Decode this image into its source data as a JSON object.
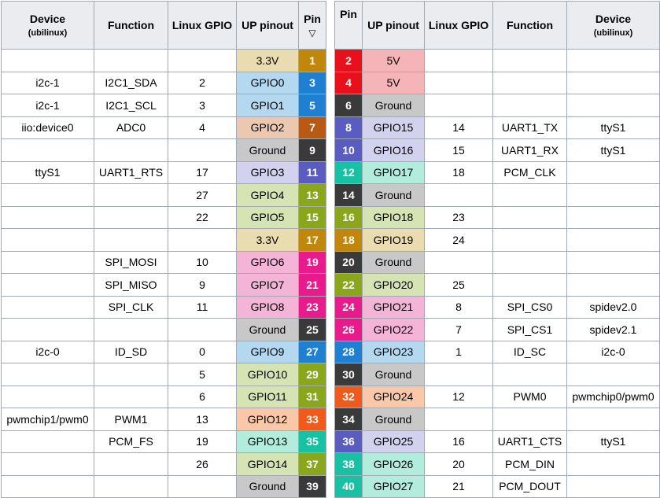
{
  "headers": {
    "left_device": "Device",
    "left_device_sub": "(ubilinux)",
    "left_function": "Function",
    "left_gpio": "Linux GPIO",
    "left_pinout": "UP pinout",
    "pin_left": "Pin",
    "pin_left_marker": "▽",
    "pin_right": "Pin",
    "right_pinout": "UP pinout",
    "right_gpio": "Linux GPIO",
    "right_function": "Function",
    "right_device": "Device",
    "right_device_sub": "(ubilinux)"
  },
  "pin_colors": {
    "p33": "#c0870a",
    "p5": "#e8101a",
    "i2c": "#1f7fd0",
    "gnd": "#3a3a3a",
    "adc": "#b85a14",
    "uart": "#5a5cc0",
    "gpio": "#8aa61a",
    "pcm": "#18c0a4",
    "spi": "#e81a8c",
    "pwm": "#f05a1a"
  },
  "cell_colors": {
    "p33": "#e8dcb0",
    "p5": "#f4b4b8",
    "i2c": "#b4d8f0",
    "gnd": "#c8c8c8",
    "adc": "#ecc8b0",
    "uart": "#d2d2ee",
    "gpio": "#d6e4b4",
    "pcm": "#b2ecdc",
    "spi": "#f4b4d8",
    "pwm": "#f8c8a8",
    "none": "#ffffff"
  },
  "rows": [
    {
      "l_device": "",
      "l_function": "",
      "l_gpio": "",
      "l_pinout": "3.3V",
      "l_type": "p33",
      "l_pin": "1",
      "r_pin": "2",
      "r_type": "p5",
      "r_pinout": "5V",
      "r_gpio": "",
      "r_function": "",
      "r_device": ""
    },
    {
      "l_device": "i2c-1",
      "l_function": "I2C1_SDA",
      "l_gpio": "2",
      "l_pinout": "GPIO0",
      "l_type": "i2c",
      "l_pin": "3",
      "r_pin": "4",
      "r_type": "p5",
      "r_pinout": "5V",
      "r_gpio": "",
      "r_function": "",
      "r_device": ""
    },
    {
      "l_device": "i2c-1",
      "l_function": "I2C1_SCL",
      "l_gpio": "3",
      "l_pinout": "GPIO1",
      "l_type": "i2c",
      "l_pin": "5",
      "r_pin": "6",
      "r_type": "gnd",
      "r_pinout": "Ground",
      "r_gpio": "",
      "r_function": "",
      "r_device": ""
    },
    {
      "l_device": "iio:device0",
      "l_function": "ADC0",
      "l_gpio": "4",
      "l_pinout": "GPIO2",
      "l_type": "adc",
      "l_pin": "7",
      "r_pin": "8",
      "r_type": "uart",
      "r_pinout": "GPIO15",
      "r_gpio": "14",
      "r_function": "UART1_TX",
      "r_device": "ttyS1"
    },
    {
      "l_device": "",
      "l_function": "",
      "l_gpio": "",
      "l_pinout": "Ground",
      "l_type": "gnd",
      "l_pin": "9",
      "r_pin": "10",
      "r_type": "uart",
      "r_pinout": "GPIO16",
      "r_gpio": "15",
      "r_function": "UART1_RX",
      "r_device": "ttyS1"
    },
    {
      "l_device": "ttyS1",
      "l_function": "UART1_RTS",
      "l_gpio": "17",
      "l_pinout": "GPIO3",
      "l_type": "uart",
      "l_pin": "11",
      "r_pin": "12",
      "r_type": "pcm",
      "r_pinout": "GPIO17",
      "r_gpio": "18",
      "r_function": "PCM_CLK",
      "r_device": ""
    },
    {
      "l_device": "",
      "l_function": "",
      "l_gpio": "27",
      "l_pinout": "GPIO4",
      "l_type": "gpio",
      "l_pin": "13",
      "r_pin": "14",
      "r_type": "gnd",
      "r_pinout": "Ground",
      "r_gpio": "",
      "r_function": "",
      "r_device": ""
    },
    {
      "l_device": "",
      "l_function": "",
      "l_gpio": "22",
      "l_pinout": "GPIO5",
      "l_type": "gpio",
      "l_pin": "15",
      "r_pin": "16",
      "r_type": "gpio",
      "r_pinout": "GPIO18",
      "r_gpio": "23",
      "r_function": "",
      "r_device": ""
    },
    {
      "l_device": "",
      "l_function": "",
      "l_gpio": "",
      "l_pinout": "3.3V",
      "l_type": "p33",
      "l_pin": "17",
      "r_pin": "18",
      "r_type": "p33",
      "r_pinout": "GPIO19",
      "r_gpio": "24",
      "r_function": "",
      "r_device": ""
    },
    {
      "l_device": "",
      "l_function": "SPI_MOSI",
      "l_gpio": "10",
      "l_pinout": "GPIO6",
      "l_type": "spi",
      "l_pin": "19",
      "r_pin": "20",
      "r_type": "gnd",
      "r_pinout": "Ground",
      "r_gpio": "",
      "r_function": "",
      "r_device": ""
    },
    {
      "l_device": "",
      "l_function": "SPI_MISO",
      "l_gpio": "9",
      "l_pinout": "GPIO7",
      "l_type": "spi",
      "l_pin": "21",
      "r_pin": "22",
      "r_type": "gpio",
      "r_pinout": "GPIO20",
      "r_gpio": "25",
      "r_function": "",
      "r_device": ""
    },
    {
      "l_device": "",
      "l_function": "SPI_CLK",
      "l_gpio": "11",
      "l_pinout": "GPIO8",
      "l_type": "spi",
      "l_pin": "23",
      "r_pin": "24",
      "r_type": "spi",
      "r_pinout": "GPIO21",
      "r_gpio": "8",
      "r_function": "SPI_CS0",
      "r_device": "spidev2.0"
    },
    {
      "l_device": "",
      "l_function": "",
      "l_gpio": "",
      "l_pinout": "Ground",
      "l_type": "gnd",
      "l_pin": "25",
      "r_pin": "26",
      "r_type": "spi",
      "r_pinout": "GPIO22",
      "r_gpio": "7",
      "r_function": "SPI_CS1",
      "r_device": "spidev2.1"
    },
    {
      "l_device": "i2c-0",
      "l_function": "ID_SD",
      "l_gpio": "0",
      "l_pinout": "GPIO9",
      "l_type": "i2c",
      "l_pin": "27",
      "r_pin": "28",
      "r_type": "i2c",
      "r_pinout": "GPIO23",
      "r_gpio": "1",
      "r_function": "ID_SC",
      "r_device": "i2c-0"
    },
    {
      "l_device": "",
      "l_function": "",
      "l_gpio": "5",
      "l_pinout": "GPIO10",
      "l_type": "gpio",
      "l_pin": "29",
      "r_pin": "30",
      "r_type": "gnd",
      "r_pinout": "Ground",
      "r_gpio": "",
      "r_function": "",
      "r_device": ""
    },
    {
      "l_device": "",
      "l_function": "",
      "l_gpio": "6",
      "l_pinout": "GPIO11",
      "l_type": "gpio",
      "l_pin": "31",
      "r_pin": "32",
      "r_type": "pwm",
      "r_pinout": "GPIO24",
      "r_gpio": "12",
      "r_function": "PWM0",
      "r_device": "pwmchip0/pwm0"
    },
    {
      "l_device": "pwmchip1/pwm0",
      "l_function": "PWM1",
      "l_gpio": "13",
      "l_pinout": "GPIO12",
      "l_type": "pwm",
      "l_pin": "33",
      "r_pin": "34",
      "r_type": "gnd",
      "r_pinout": "Ground",
      "r_gpio": "",
      "r_function": "",
      "r_device": ""
    },
    {
      "l_device": "",
      "l_function": "PCM_FS",
      "l_gpio": "19",
      "l_pinout": "GPIO13",
      "l_type": "pcm",
      "l_pin": "35",
      "r_pin": "36",
      "r_type": "uart",
      "r_pinout": "GPIO25",
      "r_gpio": "16",
      "r_function": "UART1_CTS",
      "r_device": "ttyS1"
    },
    {
      "l_device": "",
      "l_function": "",
      "l_gpio": "26",
      "l_pinout": "GPIO14",
      "l_type": "gpio",
      "l_pin": "37",
      "r_pin": "38",
      "r_type": "pcm",
      "r_pinout": "GPIO26",
      "r_gpio": "20",
      "r_function": "PCM_DIN",
      "r_device": ""
    },
    {
      "l_device": "",
      "l_function": "",
      "l_gpio": "",
      "l_pinout": "Ground",
      "l_type": "gnd",
      "l_pin": "39",
      "r_pin": "40",
      "r_type": "pcm",
      "r_pinout": "GPIO27",
      "r_gpio": "21",
      "r_function": "PCM_DOUT",
      "r_device": ""
    }
  ]
}
